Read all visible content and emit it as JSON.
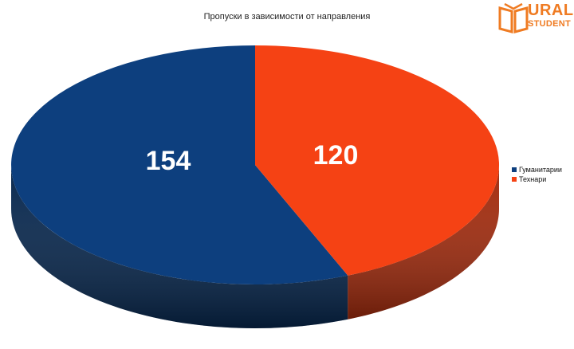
{
  "chart_data": {
    "type": "pie",
    "title": "Пропуски в  зависимости от направления",
    "categories": [
      "Гуманитарии",
      "Технари"
    ],
    "values": [
      154,
      120
    ],
    "colors": [
      "#0d3f7e",
      "#f54214"
    ],
    "side_colors": [
      "#07274e",
      "#a32b0d"
    ],
    "legend_position": "right",
    "style": "3d"
  },
  "logo": {
    "line1": "URAL",
    "line2": "STUDENT",
    "color": "#ef7b22"
  }
}
